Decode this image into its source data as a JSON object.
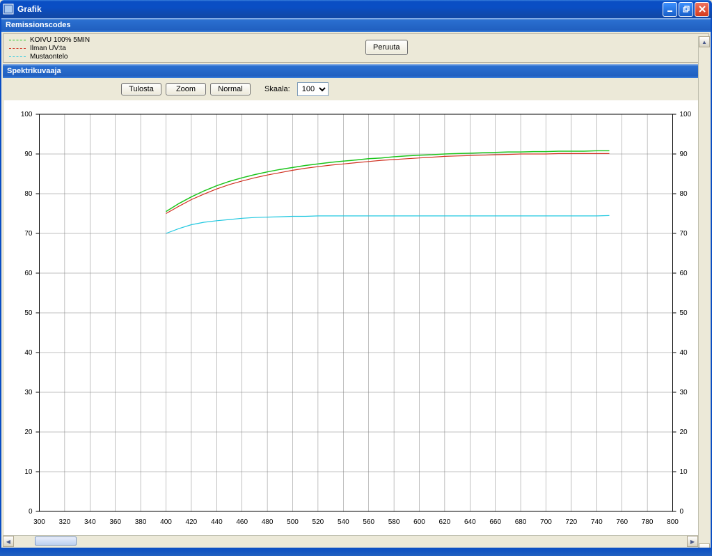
{
  "window": {
    "title": "Grafik",
    "titlebar_color_start": "#3a81dd",
    "titlebar_color_end": "#0a4ec4",
    "close_color": "#d43a1c"
  },
  "legend_panel": {
    "title": "Remissionscodes",
    "background": "#ece9d8",
    "items": [
      {
        "label": "KOIVU 100% 5MIN",
        "color": "#1cc41c",
        "dash": "2,2"
      },
      {
        "label": "Ilman UV:ta",
        "color": "#d03020",
        "dash": "2,2"
      },
      {
        "label": "Mustaontelo",
        "color": "#20c8e0",
        "dash": "2,2"
      }
    ],
    "cancel_button": "Peruuta"
  },
  "chart_panel": {
    "title": "Spektrikuvaaja",
    "toolbar": {
      "print": "Tulosta",
      "zoom": "Zoom",
      "normal": "Normal",
      "scale_label": "Skaala:",
      "scale_value": "100"
    }
  },
  "chart": {
    "type": "line",
    "background_color": "#ffffff",
    "grid_color": "#808080",
    "grid_width": 0.5,
    "axis_font_size": 10,
    "xlim": [
      300,
      800
    ],
    "xtick_step": 20,
    "ylim": [
      0,
      100
    ],
    "ytick_step": 10,
    "series": [
      {
        "name": "KOIVU 100% 5MIN",
        "color": "#1cc41c",
        "width": 1.5,
        "points": [
          [
            400,
            75.5
          ],
          [
            410,
            77.5
          ],
          [
            420,
            79.2
          ],
          [
            430,
            80.7
          ],
          [
            440,
            82.0
          ],
          [
            450,
            83.1
          ],
          [
            460,
            84.0
          ],
          [
            470,
            84.8
          ],
          [
            480,
            85.5
          ],
          [
            490,
            86.1
          ],
          [
            500,
            86.6
          ],
          [
            510,
            87.1
          ],
          [
            520,
            87.5
          ],
          [
            530,
            87.9
          ],
          [
            540,
            88.2
          ],
          [
            550,
            88.5
          ],
          [
            560,
            88.8
          ],
          [
            570,
            89.0
          ],
          [
            580,
            89.3
          ],
          [
            590,
            89.5
          ],
          [
            600,
            89.7
          ],
          [
            610,
            89.8
          ],
          [
            620,
            90.0
          ],
          [
            630,
            90.1
          ],
          [
            640,
            90.2
          ],
          [
            650,
            90.3
          ],
          [
            660,
            90.4
          ],
          [
            670,
            90.5
          ],
          [
            680,
            90.5
          ],
          [
            690,
            90.6
          ],
          [
            700,
            90.6
          ],
          [
            710,
            90.7
          ],
          [
            720,
            90.7
          ],
          [
            730,
            90.7
          ],
          [
            740,
            90.8
          ],
          [
            750,
            90.8
          ]
        ]
      },
      {
        "name": "Ilman UV:ta",
        "color": "#d03020",
        "width": 1.2,
        "points": [
          [
            400,
            75.0
          ],
          [
            410,
            76.8
          ],
          [
            420,
            78.5
          ],
          [
            430,
            79.9
          ],
          [
            440,
            81.2
          ],
          [
            450,
            82.3
          ],
          [
            460,
            83.2
          ],
          [
            470,
            84.0
          ],
          [
            480,
            84.7
          ],
          [
            490,
            85.3
          ],
          [
            500,
            85.9
          ],
          [
            510,
            86.4
          ],
          [
            520,
            86.8
          ],
          [
            530,
            87.2
          ],
          [
            540,
            87.5
          ],
          [
            550,
            87.8
          ],
          [
            560,
            88.1
          ],
          [
            570,
            88.4
          ],
          [
            580,
            88.6
          ],
          [
            590,
            88.8
          ],
          [
            600,
            89.0
          ],
          [
            610,
            89.2
          ],
          [
            620,
            89.4
          ],
          [
            630,
            89.5
          ],
          [
            640,
            89.6
          ],
          [
            650,
            89.7
          ],
          [
            660,
            89.8
          ],
          [
            670,
            89.9
          ],
          [
            680,
            90.0
          ],
          [
            690,
            90.0
          ],
          [
            700,
            90.0
          ],
          [
            710,
            90.1
          ],
          [
            720,
            90.1
          ],
          [
            730,
            90.1
          ],
          [
            740,
            90.1
          ],
          [
            750,
            90.1
          ]
        ]
      },
      {
        "name": "Mustaontelo",
        "color": "#20c8e0",
        "width": 1.2,
        "points": [
          [
            400,
            70.0
          ],
          [
            410,
            71.2
          ],
          [
            420,
            72.2
          ],
          [
            430,
            72.8
          ],
          [
            440,
            73.2
          ],
          [
            450,
            73.5
          ],
          [
            460,
            73.8
          ],
          [
            470,
            74.0
          ],
          [
            480,
            74.1
          ],
          [
            490,
            74.2
          ],
          [
            500,
            74.3
          ],
          [
            510,
            74.3
          ],
          [
            520,
            74.4
          ],
          [
            530,
            74.4
          ],
          [
            540,
            74.4
          ],
          [
            550,
            74.4
          ],
          [
            560,
            74.4
          ],
          [
            570,
            74.4
          ],
          [
            580,
            74.4
          ],
          [
            590,
            74.4
          ],
          [
            600,
            74.4
          ],
          [
            610,
            74.4
          ],
          [
            620,
            74.4
          ],
          [
            630,
            74.4
          ],
          [
            640,
            74.4
          ],
          [
            650,
            74.4
          ],
          [
            660,
            74.4
          ],
          [
            670,
            74.4
          ],
          [
            680,
            74.4
          ],
          [
            690,
            74.4
          ],
          [
            700,
            74.4
          ],
          [
            710,
            74.4
          ],
          [
            720,
            74.4
          ],
          [
            730,
            74.4
          ],
          [
            740,
            74.4
          ],
          [
            750,
            74.5
          ]
        ]
      }
    ]
  }
}
